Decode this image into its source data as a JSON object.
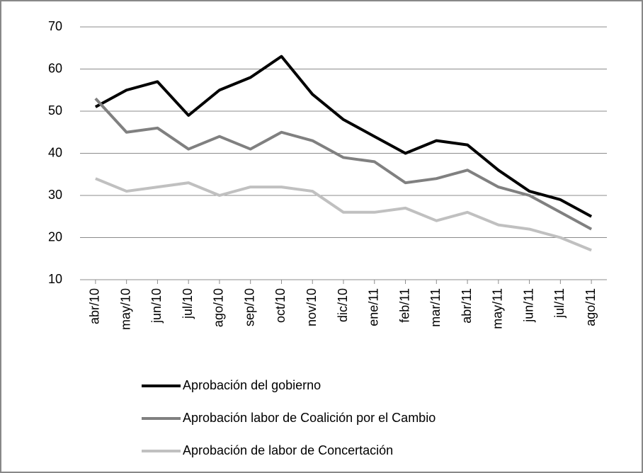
{
  "chart_data": {
    "type": "line",
    "categories": [
      "abr/10",
      "may/10",
      "jun/10",
      "jul/10",
      "ago/10",
      "sep/10",
      "oct/10",
      "nov/10",
      "dic/10",
      "ene/11",
      "feb/11",
      "mar/11",
      "abr/11",
      "may/11",
      "jun/11",
      "jul/11",
      "ago/11"
    ],
    "series": [
      {
        "name": "Aprobación del gobierno",
        "color": "#000000",
        "values": [
          51,
          55,
          57,
          49,
          55,
          58,
          63,
          54,
          48,
          44,
          40,
          43,
          42,
          36,
          31,
          29,
          25
        ]
      },
      {
        "name": "Aprobación labor de Coalición por el Cambio",
        "color": "#808080",
        "values": [
          53,
          45,
          46,
          41,
          44,
          41,
          45,
          43,
          39,
          38,
          33,
          34,
          36,
          32,
          30,
          26,
          22
        ]
      },
      {
        "name": "Aprobación de labor de Concertación",
        "color": "#c0c0c0",
        "values": [
          34,
          31,
          32,
          33,
          30,
          32,
          32,
          31,
          26,
          26,
          27,
          24,
          26,
          23,
          22,
          20,
          17
        ]
      }
    ],
    "ylim": [
      10,
      70
    ],
    "yticks": [
      10,
      20,
      30,
      40,
      50,
      60,
      70
    ],
    "grid": true,
    "legend": "bottom"
  }
}
